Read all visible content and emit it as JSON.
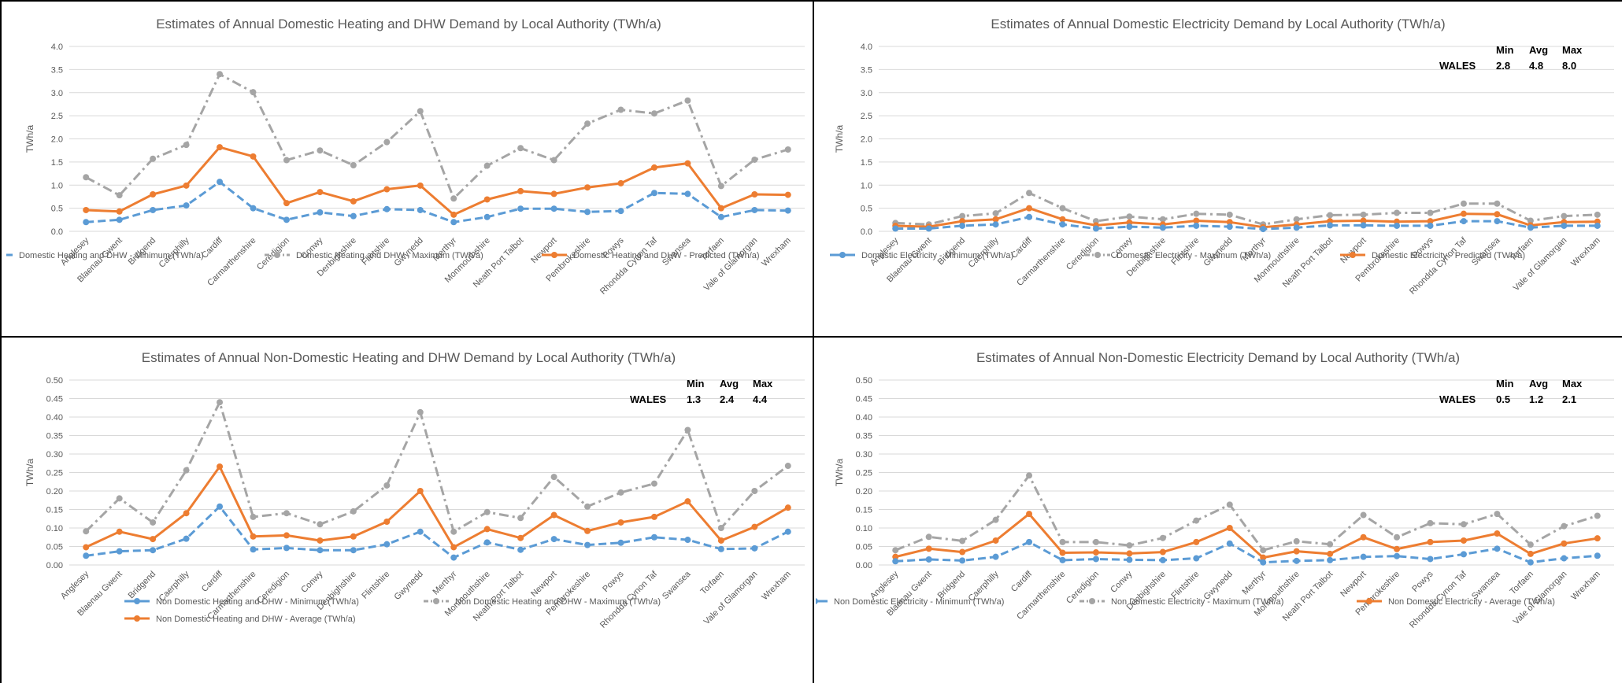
{
  "categories": [
    "Anglesey",
    "Blaenau Gwent",
    "Bridgend",
    "Caerphilly",
    "Cardiff",
    "Carmarthenshire",
    "Ceredigion",
    "Conwy",
    "Denbighshire",
    "Flintshire",
    "Gwynedd",
    "Merthyr",
    "Monmouthshire",
    "Neath Port Talbot",
    "Newport",
    "Pembrokeshire",
    "Powys",
    "Rhondda Cynon Taf",
    "Swansea",
    "Torfaen",
    "Vale of Glamorgan",
    "Wrexham"
  ],
  "colors": {
    "minimum": "#5b9bd5",
    "maximum": "#a5a5a5",
    "predicted": "#ed7d31"
  },
  "chart_data": [
    {
      "type": "line",
      "title": "Estimates of Annual Domestic Heating and DHW Demand by Local Authority (TWh/a)",
      "ylabel": "TWh/a",
      "ylim": [
        0,
        4
      ],
      "ystep": 0.5,
      "ydecimals": 1,
      "summary": null,
      "series": [
        {
          "name": "Domestic Heating and DHW - Minimum (TWh/a)",
          "role": "minimum",
          "values": [
            0.2,
            0.25,
            0.46,
            0.56,
            1.07,
            0.5,
            0.25,
            0.41,
            0.33,
            0.48,
            0.46,
            0.2,
            0.31,
            0.49,
            0.49,
            0.42,
            0.44,
            0.83,
            0.81,
            0.31,
            0.46,
            0.45
          ]
        },
        {
          "name": "Domestic Heating and DHW - Maximum (TWh/a)",
          "role": "maximum",
          "values": [
            1.17,
            0.78,
            1.57,
            1.87,
            3.4,
            3.01,
            1.54,
            1.75,
            1.43,
            1.93,
            2.6,
            0.71,
            1.42,
            1.8,
            1.54,
            2.33,
            2.63,
            2.55,
            2.83,
            0.98,
            1.55,
            1.77
          ]
        },
        {
          "name": "Domestic Heating and DHW - Predicted (TWh/a)",
          "role": "predicted",
          "values": [
            0.46,
            0.43,
            0.8,
            0.99,
            1.82,
            1.62,
            0.61,
            0.85,
            0.65,
            0.91,
            0.99,
            0.36,
            0.69,
            0.87,
            0.81,
            0.95,
            1.04,
            1.38,
            1.47,
            0.5,
            0.8,
            0.79
          ]
        }
      ],
      "legend_rows": [
        [
          0,
          1,
          2
        ]
      ]
    },
    {
      "type": "line",
      "title": "Estimates of Annual Domestic Electricity Demand by Local Authority (TWh/a)",
      "ylabel": "TWh/a",
      "ylim": [
        0,
        4
      ],
      "ystep": 0.5,
      "ydecimals": 1,
      "summary": {
        "label": "WALES",
        "headers": [
          "Min",
          "Avg",
          "Max"
        ],
        "values": [
          "2.8",
          "4.8",
          "8.0"
        ]
      },
      "series": [
        {
          "name": "Domestic Electricity - Minimum (TWh/a)",
          "role": "minimum",
          "values": [
            0.06,
            0.06,
            0.12,
            0.15,
            0.31,
            0.15,
            0.06,
            0.1,
            0.08,
            0.12,
            0.1,
            0.05,
            0.08,
            0.13,
            0.13,
            0.12,
            0.12,
            0.22,
            0.22,
            0.08,
            0.12,
            0.12
          ]
        },
        {
          "name": "Domestic Electricity - Maximum (TWh/a)",
          "role": "maximum",
          "values": [
            0.18,
            0.15,
            0.33,
            0.39,
            0.83,
            0.5,
            0.22,
            0.32,
            0.26,
            0.38,
            0.36,
            0.15,
            0.26,
            0.35,
            0.36,
            0.4,
            0.4,
            0.6,
            0.6,
            0.23,
            0.33,
            0.36
          ]
        },
        {
          "name": "Domestic Electricity - Predicted (TWh/a)",
          "role": "predicted",
          "values": [
            0.12,
            0.1,
            0.22,
            0.26,
            0.5,
            0.26,
            0.13,
            0.19,
            0.15,
            0.23,
            0.2,
            0.09,
            0.15,
            0.22,
            0.23,
            0.21,
            0.22,
            0.38,
            0.37,
            0.13,
            0.2,
            0.21
          ]
        }
      ],
      "legend_rows": [
        [
          0,
          1,
          2
        ]
      ]
    },
    {
      "type": "line",
      "title": "Estimates of Annual Non-Domestic Heating and DHW Demand by Local Authority (TWh/a)",
      "ylabel": "TWh/a",
      "ylim": [
        0,
        0.5
      ],
      "ystep": 0.05,
      "ydecimals": 2,
      "summary": {
        "label": "WALES",
        "headers": [
          "Min",
          "Avg",
          "Max"
        ],
        "values": [
          "1.3",
          "2.4",
          "4.4"
        ]
      },
      "series": [
        {
          "name": "Non Domestic Heating and DHW - Minimum (TWh/a)",
          "role": "minimum",
          "values": [
            0.025,
            0.037,
            0.04,
            0.071,
            0.158,
            0.042,
            0.046,
            0.04,
            0.04,
            0.056,
            0.09,
            0.02,
            0.061,
            0.041,
            0.07,
            0.054,
            0.06,
            0.075,
            0.068,
            0.043,
            0.045,
            0.09
          ]
        },
        {
          "name": "Non Domestic Heating and DHW - Maximum (TWh/a)",
          "role": "maximum",
          "values": [
            0.091,
            0.18,
            0.115,
            0.256,
            0.44,
            0.13,
            0.14,
            0.11,
            0.145,
            0.215,
            0.413,
            0.09,
            0.143,
            0.127,
            0.238,
            0.158,
            0.196,
            0.22,
            0.365,
            0.1,
            0.2,
            0.268
          ]
        },
        {
          "name": "Non Domestic Heating and DHW - Average (TWh/a)",
          "role": "predicted",
          "values": [
            0.048,
            0.09,
            0.07,
            0.14,
            0.266,
            0.077,
            0.08,
            0.066,
            0.077,
            0.117,
            0.2,
            0.048,
            0.097,
            0.073,
            0.135,
            0.092,
            0.115,
            0.13,
            0.172,
            0.066,
            0.103,
            0.155
          ]
        }
      ],
      "legend_rows": [
        [
          0,
          1
        ],
        [
          2
        ]
      ]
    },
    {
      "type": "line",
      "title": "Estimates of Annual Non-Domestic Electricity Demand by Local Authority (TWh/a)",
      "ylabel": "TWh/a",
      "ylim": [
        0,
        0.5
      ],
      "ystep": 0.05,
      "ydecimals": 2,
      "summary": {
        "label": "WALES",
        "headers": [
          "Min",
          "Avg",
          "Max"
        ],
        "values": [
          "0.5",
          "1.2",
          "2.1"
        ]
      },
      "series": [
        {
          "name": "Non Domestic Electricity - Minimum (TWh/a)",
          "role": "minimum",
          "values": [
            0.01,
            0.015,
            0.012,
            0.022,
            0.062,
            0.013,
            0.016,
            0.014,
            0.013,
            0.018,
            0.058,
            0.007,
            0.011,
            0.013,
            0.022,
            0.024,
            0.016,
            0.029,
            0.044,
            0.007,
            0.018,
            0.025
          ]
        },
        {
          "name": "Non Domestic Electricity - Maximum (TWh/a)",
          "role": "maximum",
          "values": [
            0.04,
            0.076,
            0.065,
            0.122,
            0.242,
            0.062,
            0.062,
            0.053,
            0.073,
            0.12,
            0.163,
            0.04,
            0.064,
            0.056,
            0.135,
            0.075,
            0.113,
            0.11,
            0.138,
            0.055,
            0.105,
            0.133
          ]
        },
        {
          "name": "Non Domestic Electricity - Average (TWh/a)",
          "role": "predicted",
          "values": [
            0.022,
            0.044,
            0.035,
            0.066,
            0.138,
            0.033,
            0.034,
            0.031,
            0.035,
            0.062,
            0.1,
            0.02,
            0.037,
            0.03,
            0.075,
            0.043,
            0.062,
            0.066,
            0.085,
            0.03,
            0.058,
            0.072
          ]
        }
      ],
      "legend_rows": [
        [
          0,
          1,
          2
        ]
      ]
    }
  ]
}
